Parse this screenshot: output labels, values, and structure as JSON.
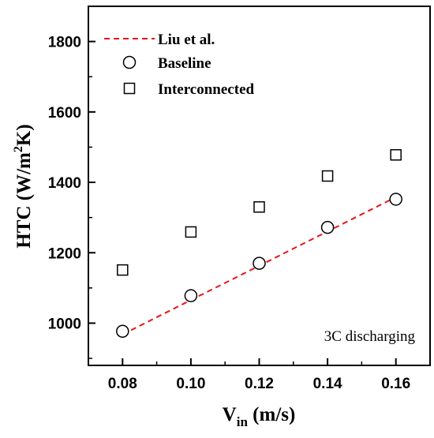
{
  "chart_data": {
    "type": "scatter",
    "xlabel": "V",
    "xlabel_sub": "in",
    "xlabel_unit": " (m/s)",
    "ylabel": "HTC (W/m",
    "ylabel_sup": "2",
    "ylabel_unit": "K)",
    "xlim": [
      0.07,
      0.17
    ],
    "ylim": [
      880,
      1900
    ],
    "xticks": [
      0.08,
      0.1,
      0.12,
      0.14,
      0.16
    ],
    "xtick_labels": [
      "0.08",
      "0.10",
      "0.12",
      "0.14",
      "0.16"
    ],
    "yticks": [
      1000,
      1200,
      1400,
      1600,
      1800
    ],
    "ytick_labels": [
      "1000",
      "1200",
      "1400",
      "1600",
      "1800"
    ],
    "grid": false,
    "legend_position": "top-left",
    "annotation": "3C discharging",
    "series": [
      {
        "name": "Liu et al.",
        "kind": "line",
        "style": "dashed",
        "color": "#e8141c",
        "x": [
          0.08,
          0.16
        ],
        "y": [
          968,
          1358
        ]
      },
      {
        "name": "Baseline",
        "kind": "marker",
        "marker": "circle",
        "color": "#000000",
        "x": [
          0.08,
          0.1,
          0.12,
          0.14,
          0.16
        ],
        "y": [
          977,
          1078,
          1170,
          1272,
          1352
        ]
      },
      {
        "name": "Interconnected",
        "kind": "marker",
        "marker": "square",
        "color": "#000000",
        "x": [
          0.08,
          0.1,
          0.12,
          0.14,
          0.16
        ],
        "y": [
          1151,
          1259,
          1330,
          1418,
          1478
        ]
      }
    ]
  }
}
